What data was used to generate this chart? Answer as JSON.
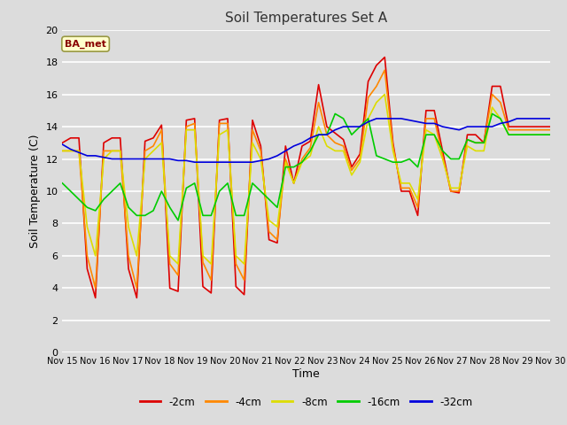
{
  "title": "Soil Temperatures Set A",
  "xlabel": "Time",
  "ylabel": "Soil Temperature (C)",
  "ylim": [
    0,
    20
  ],
  "xlim": [
    0,
    15
  ],
  "x_tick_labels": [
    "Nov 15",
    "Nov 16",
    "Nov 17",
    "Nov 18",
    "Nov 19",
    "Nov 20",
    "Nov 21",
    "Nov 22",
    "Nov 23",
    "Nov 24",
    "Nov 25",
    "Nov 26",
    "Nov 27",
    "Nov 28",
    "Nov 29",
    "Nov 30"
  ],
  "annotation_text": "BA_met",
  "bg_color": "#dcdcdc",
  "legend_entries": [
    "-2cm",
    "-4cm",
    "-8cm",
    "-16cm",
    "-32cm"
  ],
  "colors": {
    "-2cm": "#dd0000",
    "-4cm": "#ff8800",
    "-8cm": "#dddd00",
    "-16cm": "#00cc00",
    "-32cm": "#0000dd"
  },
  "series": {
    "-2cm": [
      13.0,
      13.3,
      13.3,
      5.2,
      3.4,
      13.0,
      13.3,
      13.3,
      5.2,
      3.4,
      13.1,
      13.3,
      14.1,
      4.0,
      3.8,
      14.4,
      14.5,
      4.1,
      3.7,
      14.4,
      14.5,
      4.1,
      3.6,
      14.4,
      12.8,
      7.0,
      6.8,
      12.8,
      10.5,
      12.8,
      13.1,
      16.6,
      14.0,
      13.6,
      13.2,
      11.5,
      12.3,
      16.8,
      17.8,
      18.3,
      13.0,
      10.0,
      10.0,
      8.5,
      15.0,
      15.0,
      12.5,
      10.0,
      9.9,
      13.5,
      13.5,
      13.0,
      16.5,
      16.5,
      14.0,
      14.0,
      14.0,
      14.0,
      14.0,
      14.0
    ],
    "-4cm": [
      12.5,
      12.5,
      12.5,
      6.0,
      4.0,
      12.5,
      12.5,
      12.5,
      6.0,
      4.0,
      12.5,
      12.8,
      13.8,
      5.5,
      4.8,
      14.0,
      14.2,
      5.6,
      4.5,
      14.2,
      14.2,
      5.5,
      4.5,
      13.8,
      12.5,
      7.5,
      7.0,
      12.0,
      10.5,
      12.0,
      12.7,
      15.5,
      13.5,
      13.0,
      12.8,
      11.3,
      12.0,
      15.8,
      16.5,
      17.5,
      12.8,
      10.2,
      10.2,
      9.0,
      14.5,
      14.5,
      12.2,
      10.0,
      10.0,
      13.2,
      13.0,
      13.0,
      16.0,
      15.5,
      13.8,
      13.8,
      13.8,
      13.8,
      13.8,
      13.8
    ],
    "-8cm": [
      12.5,
      12.5,
      12.5,
      7.8,
      6.0,
      12.0,
      12.5,
      12.5,
      7.8,
      6.0,
      12.0,
      12.5,
      13.0,
      6.0,
      5.5,
      13.8,
      13.8,
      6.0,
      5.5,
      13.5,
      13.8,
      6.0,
      5.5,
      13.0,
      12.0,
      8.2,
      7.8,
      11.8,
      10.5,
      11.8,
      12.2,
      14.0,
      12.8,
      12.5,
      12.5,
      11.0,
      11.8,
      14.5,
      15.5,
      16.0,
      12.5,
      10.5,
      10.5,
      9.5,
      13.8,
      13.5,
      12.0,
      10.2,
      10.2,
      12.8,
      12.5,
      12.5,
      15.2,
      14.5,
      13.5,
      13.5,
      13.5,
      13.5,
      13.5,
      13.5
    ],
    "-16cm": [
      10.5,
      10.0,
      9.5,
      9.0,
      8.8,
      9.5,
      10.0,
      10.5,
      9.0,
      8.5,
      8.5,
      8.8,
      10.0,
      9.0,
      8.2,
      10.2,
      10.5,
      8.5,
      8.5,
      10.0,
      10.5,
      8.5,
      8.5,
      10.5,
      10.0,
      9.5,
      9.0,
      11.5,
      11.5,
      11.8,
      12.5,
      13.5,
      13.5,
      14.8,
      14.5,
      13.5,
      14.0,
      14.5,
      12.2,
      12.0,
      11.8,
      11.8,
      12.0,
      11.5,
      13.5,
      13.5,
      12.5,
      12.0,
      12.0,
      13.2,
      13.0,
      13.0,
      14.8,
      14.5,
      13.5,
      13.5,
      13.5,
      13.5,
      13.5,
      13.5
    ],
    "-32cm": [
      12.9,
      12.6,
      12.4,
      12.2,
      12.2,
      12.1,
      12.0,
      12.0,
      12.0,
      12.0,
      12.0,
      12.0,
      12.0,
      12.0,
      11.9,
      11.9,
      11.8,
      11.8,
      11.8,
      11.8,
      11.8,
      11.8,
      11.8,
      11.8,
      11.9,
      12.0,
      12.2,
      12.5,
      12.8,
      13.0,
      13.3,
      13.5,
      13.5,
      13.8,
      14.0,
      14.0,
      14.0,
      14.3,
      14.5,
      14.5,
      14.5,
      14.5,
      14.4,
      14.3,
      14.2,
      14.2,
      14.0,
      13.9,
      13.8,
      14.0,
      14.0,
      14.0,
      14.0,
      14.2,
      14.3,
      14.5,
      14.5,
      14.5,
      14.5,
      14.5
    ]
  }
}
